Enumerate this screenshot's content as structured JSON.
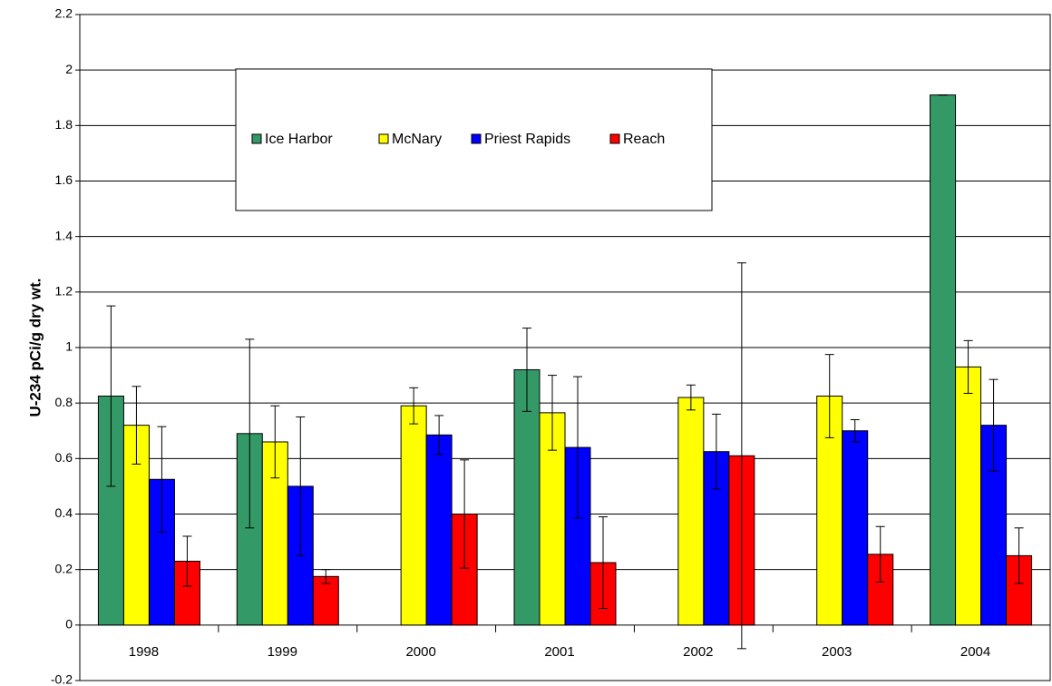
{
  "chart_data": {
    "type": "bar",
    "y_label": "U-234 pCi/g dry wt.",
    "categories": [
      "1998",
      "1999",
      "2000",
      "2001",
      "2002",
      "2003",
      "2004"
    ],
    "series": [
      {
        "name": "Ice Harbor",
        "color": "#339966",
        "values": [
          0.825,
          0.69,
          null,
          0.92,
          null,
          null,
          1.91
        ],
        "errors": [
          0.325,
          0.34,
          null,
          0.15,
          null,
          null,
          0
        ]
      },
      {
        "name": "McNary",
        "color": "#ffff00",
        "values": [
          0.72,
          0.66,
          0.79,
          0.765,
          0.82,
          0.825,
          0.93
        ],
        "errors": [
          0.14,
          0.13,
          0.065,
          0.135,
          0.045,
          0.15,
          0.095
        ]
      },
      {
        "name": "Priest Rapids",
        "color": "#0000ff",
        "values": [
          0.525,
          0.5,
          0.685,
          0.64,
          0.625,
          0.7,
          0.72
        ],
        "errors": [
          0.19,
          0.25,
          0.07,
          0.255,
          0.135,
          0.04,
          0.165
        ]
      },
      {
        "name": "Reach",
        "color": "#ff0000",
        "values": [
          0.23,
          0.175,
          0.4,
          0.225,
          0.61,
          0.255,
          0.25
        ],
        "errors": [
          0.09,
          0.025,
          0.195,
          0.165,
          0.695,
          0.1,
          0.1
        ]
      }
    ],
    "ylim": [
      -0.2,
      2.2
    ],
    "yticks": [
      -0.2,
      0,
      0.2,
      0.4,
      0.6,
      0.8,
      1,
      1.2,
      1.4,
      1.6,
      1.8,
      2,
      2.2
    ],
    "grid": true
  }
}
